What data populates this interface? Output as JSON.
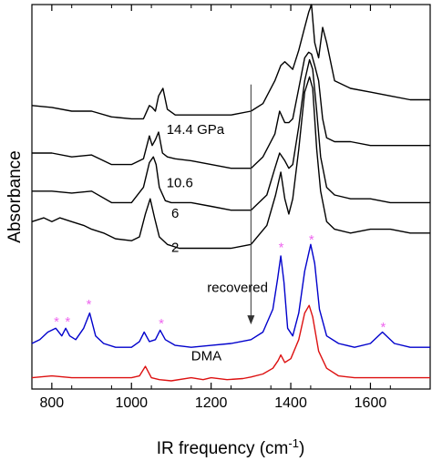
{
  "chart_data": {
    "type": "line",
    "title": "",
    "xlabel": "IR frequency (cm-1)",
    "xlabel_base": "IR frequency (cm",
    "xlabel_sup": "-1",
    "xlabel_close": ")",
    "ylabel": "Absorbance",
    "xlim": [
      750,
      1750
    ],
    "ylim": [
      0,
      1
    ],
    "x_ticks": [
      800,
      1000,
      1200,
      1400,
      1600
    ],
    "x_tick_labels": [
      "800",
      "1000",
      "1200",
      "1400",
      "1600"
    ],
    "y_ticks_labeled": false,
    "grid": false,
    "pressure_arrow": {
      "x": 1300,
      "y_from": 0.79,
      "y_to": 0.16
    },
    "colors": {
      "pressure_curves": "#000000",
      "recovered": "#0000cc",
      "DMA": "#dd1111",
      "stars": "#ee66ee",
      "arrow": "#333333"
    },
    "series": [
      {
        "name": "14.4 GPa",
        "color": "#000000",
        "label_x": 1088,
        "label_y": 0.66,
        "x": [
          750,
          800,
          850,
          900,
          950,
          1000,
          1030,
          1045,
          1052,
          1060,
          1068,
          1079,
          1090,
          1110,
          1150,
          1200,
          1250,
          1300,
          1330,
          1360,
          1375,
          1385,
          1395,
          1405,
          1420,
          1435,
          1445,
          1452,
          1460,
          1470,
          1480,
          1490,
          1510,
          1550,
          1600,
          1650,
          1700,
          1750
        ],
        "y": [
          0.735,
          0.73,
          0.72,
          0.72,
          0.705,
          0.7,
          0.7,
          0.735,
          0.73,
          0.72,
          0.76,
          0.78,
          0.725,
          0.71,
          0.71,
          0.71,
          0.71,
          0.72,
          0.74,
          0.8,
          0.84,
          0.85,
          0.84,
          0.83,
          0.88,
          0.94,
          0.98,
          1.0,
          0.9,
          0.86,
          0.94,
          0.9,
          0.8,
          0.78,
          0.77,
          0.76,
          0.75,
          0.75
        ]
      },
      {
        "name": "10.6",
        "color": "#000000",
        "label_x": 1088,
        "label_y": 0.52,
        "x": [
          750,
          800,
          850,
          900,
          950,
          1000,
          1030,
          1045,
          1052,
          1060,
          1068,
          1078,
          1090,
          1110,
          1150,
          1200,
          1250,
          1300,
          1330,
          1360,
          1372,
          1385,
          1395,
          1405,
          1420,
          1435,
          1445,
          1452,
          1460,
          1470,
          1480,
          1490,
          1510,
          1550,
          1600,
          1650,
          1700,
          1750
        ],
        "y": [
          0.61,
          0.61,
          0.6,
          0.605,
          0.58,
          0.58,
          0.595,
          0.655,
          0.63,
          0.645,
          0.665,
          0.61,
          0.6,
          0.595,
          0.59,
          0.58,
          0.57,
          0.57,
          0.6,
          0.66,
          0.72,
          0.69,
          0.69,
          0.7,
          0.78,
          0.86,
          0.875,
          0.87,
          0.84,
          0.8,
          0.7,
          0.65,
          0.64,
          0.64,
          0.63,
          0.63,
          0.63,
          0.63
        ]
      },
      {
        "name": "6",
        "color": "#000000",
        "label_x": 1100,
        "label_y": 0.44,
        "x": [
          750,
          800,
          850,
          900,
          950,
          1000,
          1030,
          1045,
          1055,
          1062,
          1070,
          1085,
          1100,
          1150,
          1200,
          1250,
          1300,
          1340,
          1360,
          1372,
          1385,
          1395,
          1405,
          1420,
          1435,
          1447,
          1455,
          1465,
          1475,
          1490,
          1510,
          1550,
          1600,
          1650,
          1700,
          1750
        ],
        "y": [
          0.51,
          0.51,
          0.505,
          0.51,
          0.48,
          0.48,
          0.52,
          0.585,
          0.6,
          0.58,
          0.52,
          0.485,
          0.48,
          0.48,
          0.47,
          0.46,
          0.46,
          0.5,
          0.57,
          0.61,
          0.59,
          0.57,
          0.58,
          0.68,
          0.8,
          0.855,
          0.83,
          0.72,
          0.6,
          0.52,
          0.5,
          0.49,
          0.49,
          0.48,
          0.48,
          0.48
        ]
      },
      {
        "name": "2",
        "color": "#000000",
        "label_x": 1100,
        "label_y": 0.35,
        "x": [
          750,
          780,
          800,
          820,
          850,
          880,
          900,
          930,
          960,
          1000,
          1020,
          1035,
          1047,
          1058,
          1070,
          1090,
          1120,
          1150,
          1200,
          1250,
          1300,
          1340,
          1362,
          1375,
          1385,
          1395,
          1405,
          1420,
          1435,
          1447,
          1455,
          1465,
          1475,
          1490,
          1510,
          1550,
          1600,
          1650,
          1700,
          1750
        ],
        "y": [
          0.43,
          0.44,
          0.43,
          0.44,
          0.43,
          0.42,
          0.41,
          0.4,
          0.385,
          0.38,
          0.39,
          0.45,
          0.49,
          0.44,
          0.39,
          0.37,
          0.36,
          0.36,
          0.36,
          0.36,
          0.37,
          0.42,
          0.5,
          0.56,
          0.49,
          0.45,
          0.49,
          0.62,
          0.77,
          0.81,
          0.78,
          0.62,
          0.51,
          0.43,
          0.41,
          0.4,
          0.41,
          0.41,
          0.4,
          0.4
        ]
      },
      {
        "name": "recovered",
        "color": "#0000cc",
        "label_x": 1190,
        "label_y": 0.245,
        "x": [
          750,
          770,
          790,
          810,
          825,
          835,
          845,
          860,
          880,
          895,
          910,
          930,
          960,
          1000,
          1020,
          1032,
          1045,
          1060,
          1072,
          1085,
          1110,
          1150,
          1200,
          1250,
          1300,
          1330,
          1355,
          1367,
          1375,
          1383,
          1392,
          1405,
          1420,
          1435,
          1450,
          1460,
          1472,
          1490,
          1520,
          1560,
          1600,
          1630,
          1660,
          1700,
          1750
        ],
        "y": [
          0.11,
          0.12,
          0.14,
          0.15,
          0.13,
          0.15,
          0.13,
          0.12,
          0.15,
          0.19,
          0.13,
          0.11,
          0.1,
          0.1,
          0.115,
          0.14,
          0.115,
          0.12,
          0.145,
          0.12,
          0.105,
          0.1,
          0.105,
          0.11,
          0.12,
          0.14,
          0.2,
          0.28,
          0.34,
          0.27,
          0.15,
          0.13,
          0.19,
          0.3,
          0.37,
          0.32,
          0.2,
          0.13,
          0.11,
          0.1,
          0.11,
          0.14,
          0.11,
          0.1,
          0.1
        ]
      },
      {
        "name": "DMA",
        "color": "#dd1111",
        "label_x": 1150,
        "label_y": 0.066,
        "x": [
          750,
          800,
          850,
          900,
          950,
          1000,
          1020,
          1035,
          1050,
          1070,
          1100,
          1150,
          1180,
          1200,
          1240,
          1280,
          1300,
          1330,
          1355,
          1368,
          1375,
          1385,
          1400,
          1420,
          1435,
          1446,
          1455,
          1470,
          1490,
          1520,
          1560,
          1600,
          1650,
          1700,
          1750
        ],
        "y": [
          0.02,
          0.025,
          0.02,
          0.02,
          0.02,
          0.02,
          0.025,
          0.05,
          0.02,
          0.015,
          0.012,
          0.02,
          0.015,
          0.02,
          0.015,
          0.018,
          0.022,
          0.03,
          0.045,
          0.065,
          0.08,
          0.06,
          0.07,
          0.12,
          0.19,
          0.21,
          0.18,
          0.09,
          0.045,
          0.025,
          0.02,
          0.02,
          0.02,
          0.02,
          0.02
        ]
      }
    ],
    "annotations": [
      {
        "text": "*",
        "x": 812,
        "y": 0.175
      },
      {
        "text": "*",
        "x": 840,
        "y": 0.175
      },
      {
        "text": "*",
        "x": 893,
        "y": 0.22
      },
      {
        "text": "*",
        "x": 1075,
        "y": 0.17
      },
      {
        "text": "*",
        "x": 1376,
        "y": 0.37
      },
      {
        "text": "*",
        "x": 1452,
        "y": 0.39
      },
      {
        "text": "*",
        "x": 1632,
        "y": 0.16
      }
    ]
  }
}
